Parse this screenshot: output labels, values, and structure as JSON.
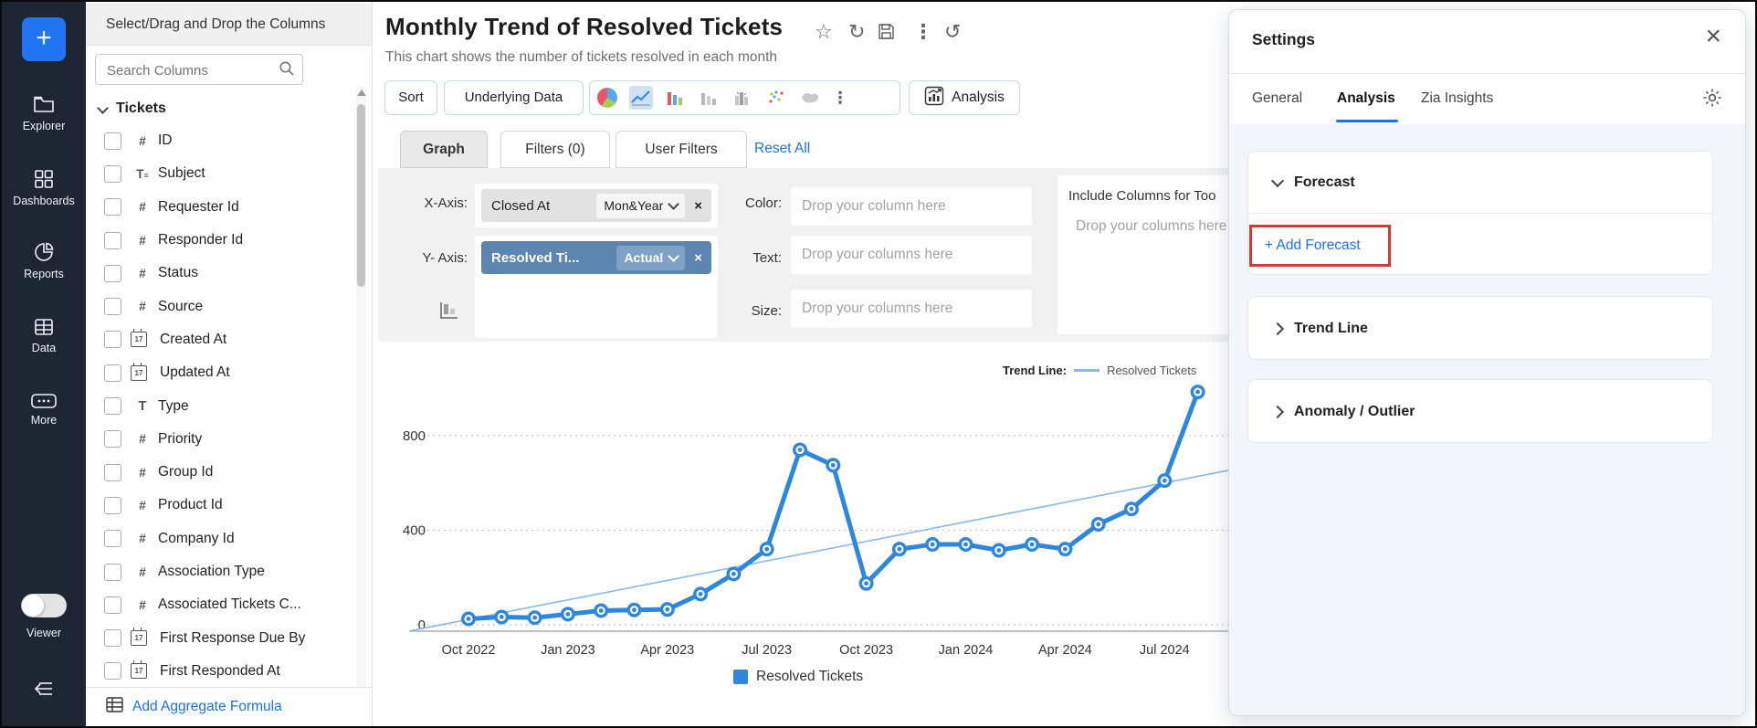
{
  "colors": {
    "accent": "#1a73e8",
    "line_series": "#2e86de",
    "trend_line": "#8ab8e8",
    "rail_bg": "#1e2533",
    "y_chip": "#5d85b2",
    "highlight_box": "#d43a2f",
    "selected_icon_bg": "#cfe2f5"
  },
  "rail": {
    "plus_label": "+",
    "items": [
      {
        "icon": "folder-icon",
        "label": "Explorer"
      },
      {
        "icon": "dashboards-icon",
        "label": "Dashboards"
      },
      {
        "icon": "pie-icon",
        "label": "Reports"
      },
      {
        "icon": "table-icon",
        "label": "Data"
      },
      {
        "icon": "more-icon",
        "label": "More"
      }
    ],
    "viewer_label": "Viewer"
  },
  "sidebar": {
    "header": "Select/Drag and Drop the Columns",
    "search_placeholder": "Search Columns",
    "group_label": "Tickets",
    "columns": [
      {
        "icon": "number-icon",
        "label": "ID"
      },
      {
        "icon": "text-icon",
        "label": "Subject"
      },
      {
        "icon": "number-icon",
        "label": "Requester Id"
      },
      {
        "icon": "number-icon",
        "label": "Responder Id"
      },
      {
        "icon": "number-icon",
        "label": "Status"
      },
      {
        "icon": "number-icon",
        "label": "Source"
      },
      {
        "icon": "date-icon",
        "label": "Created At"
      },
      {
        "icon": "date-icon",
        "label": "Updated At"
      },
      {
        "icon": "type-icon",
        "label": "Type"
      },
      {
        "icon": "number-icon",
        "label": "Priority"
      },
      {
        "icon": "number-icon",
        "label": "Group Id"
      },
      {
        "icon": "number-icon",
        "label": "Product Id"
      },
      {
        "icon": "number-icon",
        "label": "Company Id"
      },
      {
        "icon": "number-icon",
        "label": "Association Type"
      },
      {
        "icon": "number-icon",
        "label": "Associated Tickets C..."
      },
      {
        "icon": "date-icon",
        "label": "First Response Due By"
      },
      {
        "icon": "date-icon",
        "label": "First Responded At"
      }
    ],
    "footer_action": "Add Aggregate Formula"
  },
  "report": {
    "title": "Monthly Trend of Resolved Tickets",
    "subtitle": "This chart shows the number of tickets resolved in each month"
  },
  "toolbar": {
    "sort_label": "Sort",
    "underlying_label": "Underlying Data",
    "analysis_label": "Analysis",
    "chart_types": [
      "pie-chart-icon",
      "line-chart-icon",
      "bar-chart-icon",
      "stacked-bar-icon",
      "grouped-bar-icon",
      "scatter-plot-icon",
      "map-chart-icon"
    ],
    "selected_chart_type": "line-chart-icon"
  },
  "tabs": {
    "graph": "Graph",
    "filters": "Filters (0)",
    "user_filters": "User Filters",
    "reset": "Reset All",
    "active": "Graph"
  },
  "config": {
    "x_axis": {
      "label": "X-Axis:",
      "field": "Closed At",
      "aggregation": "Mon&Year"
    },
    "y_axis": {
      "label": "Y- Axis:",
      "field": "Resolved Ti...",
      "aggregation": "Actual"
    },
    "color": {
      "label": "Color:",
      "placeholder": "Drop your column here"
    },
    "text": {
      "label": "Text:",
      "placeholder": "Drop your columns here"
    },
    "size": {
      "label": "Size:",
      "placeholder": "Drop your columns here"
    },
    "include": {
      "title": "Include Columns for Too",
      "placeholder": "Drop your columns here"
    }
  },
  "trend_legend": {
    "label": "Trend Line:",
    "series": "Resolved Tickets"
  },
  "legend": {
    "label": "Resolved Tickets"
  },
  "chart_data": {
    "type": "line",
    "title": "Monthly Trend of Resolved Tickets",
    "xlabel": "",
    "ylabel": "",
    "x": [
      "Oct 2022",
      "Nov 2022",
      "Dec 2022",
      "Jan 2023",
      "Feb 2023",
      "Mar 2023",
      "Apr 2023",
      "May 2023",
      "Jun 2023",
      "Jul 2023",
      "Aug 2023",
      "Sep 2023",
      "Oct 2023",
      "Nov 2023",
      "Dec 2023",
      "Jan 2024",
      "Feb 2024",
      "Mar 2024",
      "Apr 2024",
      "May 2024",
      "Jun 2024",
      "Jul 2024",
      "Aug 2024"
    ],
    "series": [
      {
        "name": "Resolved Tickets",
        "values": [
          25,
          33,
          30,
          45,
          60,
          63,
          65,
          130,
          215,
          320,
          740,
          675,
          175,
          320,
          340,
          340,
          315,
          340,
          320,
          425,
          490,
          610,
          985
        ]
      },
      {
        "name": "Trend Line",
        "type": "trend",
        "left_value": -25,
        "right_value": 660
      }
    ],
    "y_ticks": [
      0,
      400,
      800
    ],
    "ylim": [
      0,
      1000
    ],
    "x_tick_labels": [
      "Oct 2022",
      "Jan 2023",
      "Apr 2023",
      "Jul 2023",
      "Oct 2023",
      "Jan 2024",
      "Apr 2024",
      "Jul 2024"
    ],
    "grid": "dotted-horizontal",
    "legend_position": "bottom"
  },
  "settings": {
    "title": "Settings",
    "tabs": [
      {
        "label": "General",
        "active": false
      },
      {
        "label": "Analysis",
        "active": true
      },
      {
        "label": "Zia Insights",
        "active": false
      }
    ],
    "sections": [
      {
        "label": "Forecast",
        "expanded": true,
        "action": "+ Add Forecast",
        "highlighted": true
      },
      {
        "label": "Trend Line",
        "expanded": false
      },
      {
        "label": "Anomaly / Outlier",
        "expanded": false
      }
    ]
  }
}
